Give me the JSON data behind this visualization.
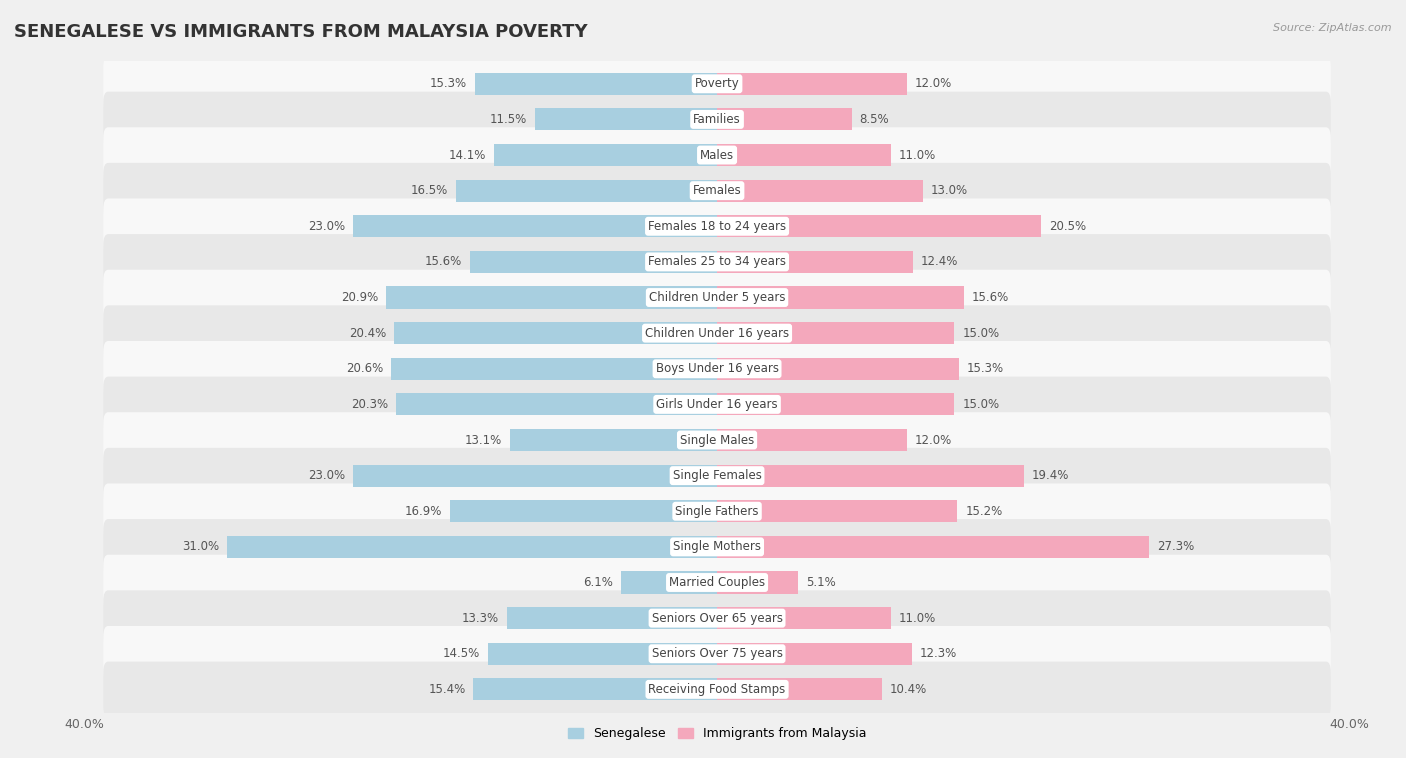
{
  "title": "SENEGALESE VS IMMIGRANTS FROM MALAYSIA POVERTY",
  "source": "Source: ZipAtlas.com",
  "categories": [
    "Poverty",
    "Families",
    "Males",
    "Females",
    "Females 18 to 24 years",
    "Females 25 to 34 years",
    "Children Under 5 years",
    "Children Under 16 years",
    "Boys Under 16 years",
    "Girls Under 16 years",
    "Single Males",
    "Single Females",
    "Single Fathers",
    "Single Mothers",
    "Married Couples",
    "Seniors Over 65 years",
    "Seniors Over 75 years",
    "Receiving Food Stamps"
  ],
  "senegalese": [
    15.3,
    11.5,
    14.1,
    16.5,
    23.0,
    15.6,
    20.9,
    20.4,
    20.6,
    20.3,
    13.1,
    23.0,
    16.9,
    31.0,
    6.1,
    13.3,
    14.5,
    15.4
  ],
  "malaysia": [
    12.0,
    8.5,
    11.0,
    13.0,
    20.5,
    12.4,
    15.6,
    15.0,
    15.3,
    15.0,
    12.0,
    19.4,
    15.2,
    27.3,
    5.1,
    11.0,
    12.3,
    10.4
  ],
  "color_senegalese": "#a8cfe0",
  "color_malaysia": "#f4a8bc",
  "background_color": "#f0f0f0",
  "row_color_odd": "#fafafa",
  "row_color_even": "#efefef",
  "axis_max": 40.0,
  "bar_height": 0.62,
  "title_fontsize": 13,
  "label_fontsize": 8.5,
  "value_fontsize": 8.5
}
